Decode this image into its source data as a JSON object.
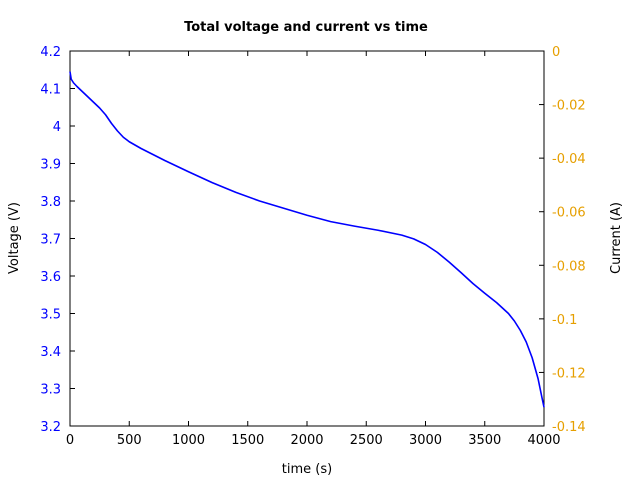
{
  "chart_data": {
    "type": "line",
    "title": "Total voltage and current vs time",
    "xlabel": "time (s)",
    "ylabel_left": "Voltage (V)",
    "ylabel_right": "Current (A)",
    "xlim": [
      0,
      4000
    ],
    "ylim_left": [
      3.2,
      4.2
    ],
    "ylim_right": [
      -0.14,
      0
    ],
    "x_ticks": [
      "0",
      "500",
      "1000",
      "1500",
      "2000",
      "2500",
      "3000",
      "3500",
      "4000"
    ],
    "y_left_ticks": [
      "3.2",
      "3.3",
      "3.4",
      "3.5",
      "3.6",
      "3.7",
      "3.8",
      "3.9",
      "4",
      "4.1",
      "4.2"
    ],
    "y_right_ticks": [
      "-0.14",
      "-0.12",
      "-0.1",
      "-0.08",
      "-0.06",
      "-0.04",
      "-0.02",
      "0"
    ],
    "colors": {
      "voltage": "#0000ff",
      "current": "#e69f00",
      "left_ticks": "#0000ff",
      "right_ticks": "#e69f00",
      "axes": "#000000"
    },
    "grid": false,
    "series": [
      {
        "axis": "left",
        "color": "#0000ff",
        "x": [
          0,
          10,
          30,
          60,
          100,
          150,
          200,
          250,
          300,
          350,
          400,
          450,
          500,
          600,
          700,
          800,
          900,
          1000,
          1200,
          1400,
          1600,
          1800,
          2000,
          2200,
          2400,
          2600,
          2800,
          2900,
          3000,
          3100,
          3200,
          3300,
          3400,
          3500,
          3600,
          3700,
          3750,
          3800,
          3850,
          3900,
          3950,
          3980,
          4000
        ],
        "values": [
          4.145,
          4.125,
          4.115,
          4.105,
          4.093,
          4.078,
          4.063,
          4.048,
          4.03,
          4.007,
          3.987,
          3.97,
          3.958,
          3.94,
          3.924,
          3.908,
          3.893,
          3.878,
          3.849,
          3.823,
          3.8,
          3.781,
          3.762,
          3.745,
          3.733,
          3.722,
          3.709,
          3.699,
          3.684,
          3.663,
          3.637,
          3.609,
          3.58,
          3.554,
          3.529,
          3.5,
          3.48,
          3.455,
          3.424,
          3.382,
          3.326,
          3.28,
          3.25
        ]
      }
    ]
  }
}
